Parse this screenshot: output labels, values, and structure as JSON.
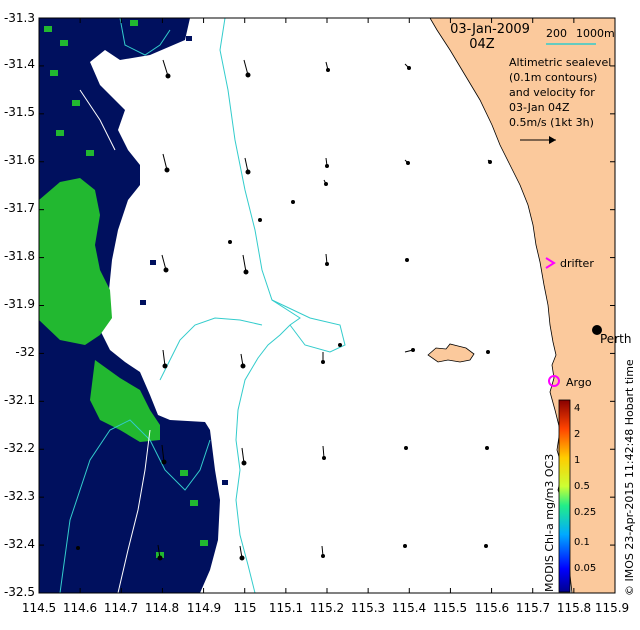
{
  "title": {
    "date": "03-Jan-2009",
    "hour": "04Z"
  },
  "scale_bar": {
    "label_left": "200",
    "label_right": "1000m",
    "color": "#33cccc"
  },
  "legend_text": {
    "line1": "Altimetric sealevel",
    "line2": "(0.1m contours)",
    "line3": "and velocity for",
    "line4": "03-Jan 04Z",
    "line5": "0.5m/s (1kt 3h)"
  },
  "places": {
    "perth": "Perth",
    "drifter": "drifter",
    "argo": "Argo"
  },
  "axes": {
    "x_ticks": [
      "114.5",
      "114.6",
      "114.7",
      "114.8",
      "114.9",
      "115",
      "115.1",
      "115.2",
      "115.3",
      "115.4",
      "115.5",
      "115.6",
      "115.7",
      "115.8",
      "115.9"
    ],
    "y_ticks": [
      "-31.3",
      "-31.4",
      "-31.5",
      "-31.6",
      "-31.7",
      "-31.8",
      "-31.9",
      "-32",
      "-32.1",
      "-32.2",
      "-32.3",
      "-32.4",
      "-32.5"
    ],
    "xlim": [
      114.5,
      115.9
    ],
    "ylim": [
      -32.5,
      -31.3
    ]
  },
  "colorbar": {
    "ticks": [
      "4",
      "2",
      "1",
      "0.5",
      "0.25",
      "0.1",
      "0.05"
    ],
    "label": "MODIS Chl-a mg/m3 OC3"
  },
  "credit": "© IMOS 23-Apr-2015 11:42:48 Hobart time",
  "colors": {
    "land": "#fbc99c",
    "chl_low": "#00105e",
    "chl_mid": "#22b830",
    "contour": "#33cccc",
    "drifter": "#ff00ff",
    "argo": "#ff00ff"
  }
}
